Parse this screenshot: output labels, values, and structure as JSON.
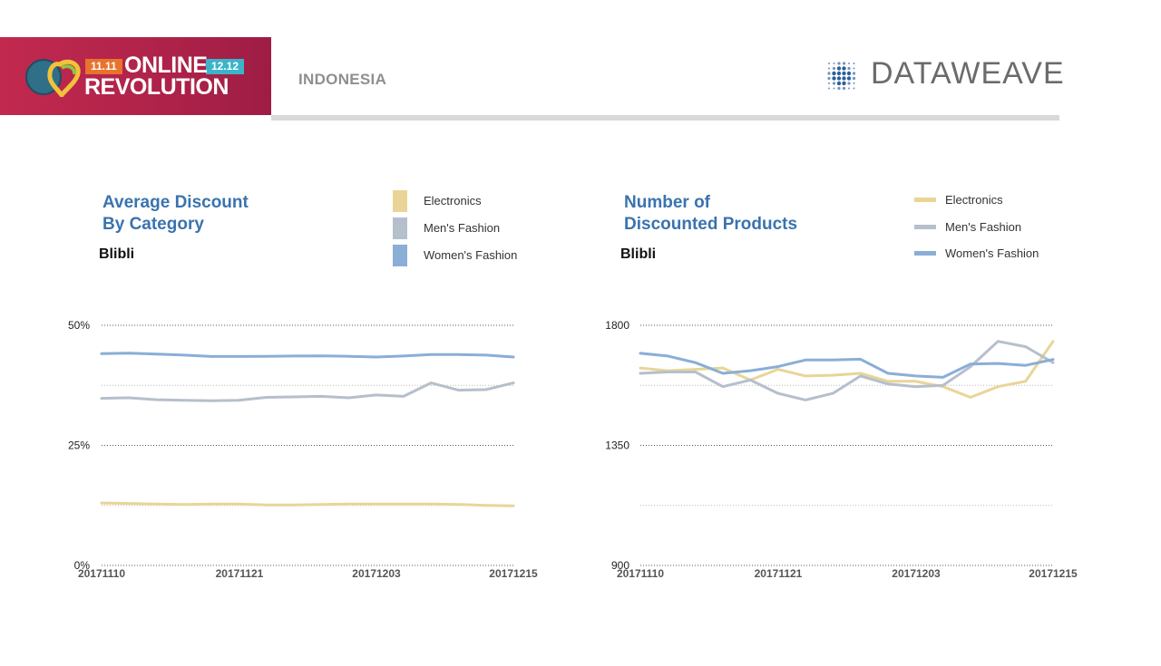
{
  "banner": {
    "badge_left": "11.11",
    "badge_right": "12.12",
    "line1": "ONLINE",
    "line2": "REVOLUTION"
  },
  "header": {
    "country": "INDONESIA",
    "brand": "DATAWEAVE"
  },
  "colors": {
    "electronics": "#e8d597",
    "mens_fashion": "#b6bfcc",
    "womens_fashion": "#8aaed6",
    "title": "#3a73ae"
  },
  "chart_data": [
    {
      "type": "line",
      "title_line1": "Average Discount",
      "title_line2": "By Category",
      "subtitle": "Blibli",
      "legend_style": "box",
      "x_tick_labels": [
        "20171110",
        "20171121",
        "20171203",
        "20171215"
      ],
      "x_tick_index": [
        0,
        5,
        10,
        15
      ],
      "y_ticks": [
        0,
        25,
        50
      ],
      "y_tick_labels": [
        "0%",
        "25%",
        "50%"
      ],
      "ylim": [
        0,
        50
      ],
      "grid": "dotted",
      "series": [
        {
          "name": "Electronics",
          "color_key": "electronics",
          "values": [
            13,
            12.9,
            12.8,
            12.7,
            12.8,
            12.8,
            12.6,
            12.6,
            12.7,
            12.8,
            12.8,
            12.8,
            12.8,
            12.7,
            12.5,
            12.4
          ]
        },
        {
          "name": "Men's Fashion",
          "color_key": "mens_fashion",
          "values": [
            34.8,
            34.9,
            34.5,
            34.4,
            34.3,
            34.4,
            35.0,
            35.1,
            35.2,
            34.9,
            35.5,
            35.2,
            38.0,
            36.5,
            36.6,
            38.0
          ]
        },
        {
          "name": "Women's Fashion",
          "color_key": "womens_fashion",
          "values": [
            44.1,
            44.2,
            44.0,
            43.8,
            43.5,
            43.5,
            43.55,
            43.6,
            43.65,
            43.55,
            43.4,
            43.6,
            43.9,
            43.9,
            43.8,
            43.4
          ]
        }
      ]
    },
    {
      "type": "line",
      "title_line1": "Number of",
      "title_line2": "Discounted Products",
      "subtitle": "Blibli",
      "legend_style": "line",
      "x_tick_labels": [
        "20171110",
        "20171121",
        "20171203",
        "20171215"
      ],
      "x_tick_index": [
        0,
        5,
        10,
        15
      ],
      "y_ticks": [
        900,
        1350,
        1800
      ],
      "y_tick_labels": [
        "900",
        "1350",
        "1800"
      ],
      "ylim": [
        900,
        1800
      ],
      "grid": "dotted",
      "series": [
        {
          "name": "Electronics",
          "color_key": "electronics",
          "values": [
            1640,
            1630,
            1635,
            1640,
            1595,
            1635,
            1610,
            1613,
            1620,
            1590,
            1590,
            1570,
            1530,
            1570,
            1590,
            1740
          ]
        },
        {
          "name": "Men's Fashion",
          "color_key": "mens_fashion",
          "values": [
            1620,
            1625,
            1625,
            1570,
            1595,
            1545,
            1520,
            1545,
            1610,
            1580,
            1570,
            1575,
            1645,
            1740,
            1720,
            1660
          ]
        },
        {
          "name": "Women's Fashion",
          "color_key": "womens_fashion",
          "values": [
            1695,
            1685,
            1660,
            1620,
            1630,
            1645,
            1670,
            1670,
            1673,
            1620,
            1610,
            1605,
            1655,
            1657,
            1650,
            1672
          ]
        }
      ]
    }
  ]
}
